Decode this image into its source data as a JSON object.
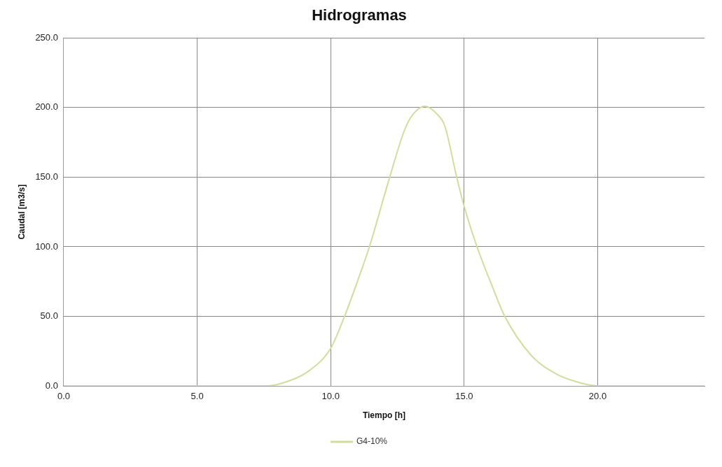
{
  "chart_data": {
    "type": "line",
    "title": "Hidrogramas",
    "xlabel": "Tiempo [h]",
    "ylabel": "Caudal [m3/s]",
    "x": [
      0,
      5,
      7.6,
      8.5,
      9.2,
      10,
      10.52,
      11,
      11.45,
      12.21,
      12.73,
      13,
      13.53,
      14,
      14.27,
      14.72,
      15,
      15.48,
      16,
      16.52,
      17.51,
      18.41,
      19.2,
      20,
      24
    ],
    "series": [
      {
        "name": "G4-10%",
        "color": "#d4dc9c",
        "values": [
          0,
          0,
          0,
          4,
          11,
          27,
          50,
          75,
          100,
          150,
          182,
          193,
          201,
          195,
          187,
          150,
          129,
          100,
          74,
          50,
          22,
          9,
          3,
          0,
          0
        ]
      }
    ],
    "xlim": [
      0,
      24
    ],
    "ylim": [
      0,
      250
    ],
    "xticks": [
      {
        "value": 0,
        "label": "0.0"
      },
      {
        "value": 5,
        "label": "5.0"
      },
      {
        "value": 10,
        "label": "10.0"
      },
      {
        "value": 15,
        "label": "15.0"
      },
      {
        "value": 20,
        "label": "20.0"
      }
    ],
    "yticks": [
      {
        "value": 0,
        "label": "0.0"
      },
      {
        "value": 50,
        "label": "50.0"
      },
      {
        "value": 100,
        "label": "100.0"
      },
      {
        "value": 150,
        "label": "150.0"
      },
      {
        "value": 200,
        "label": "200.0"
      },
      {
        "value": 250,
        "label": "250.0"
      }
    ],
    "grid": true,
    "legend": "bottom",
    "marker": "none",
    "line_style": "solid"
  }
}
